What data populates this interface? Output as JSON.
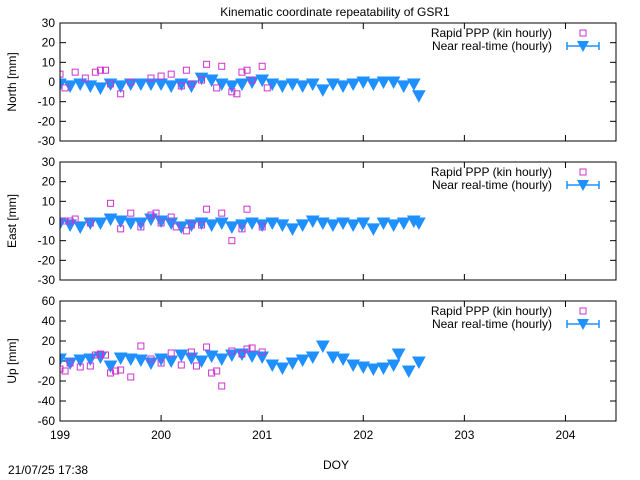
{
  "chart_data": {
    "title": "Kinematic coordinate repeatability of GSR1",
    "xlabel": "DOY",
    "timestamp": "21/07/25 17:38",
    "x_range": [
      199,
      204.5
    ],
    "x_ticks": [
      199,
      200,
      201,
      202,
      203,
      204
    ],
    "colors": {
      "rapid": "#cc33cc",
      "nrt": "#1e90ff"
    },
    "panels": [
      {
        "type": "scatter",
        "ylabel": "North [mm]",
        "ylim": [
          -30,
          30
        ],
        "y_ticks": [
          -30,
          -20,
          -10,
          0,
          10,
          20,
          30
        ],
        "series": [
          {
            "name": "Rapid PPP (kin hourly)",
            "points": [
              [
                199.0,
                4
              ],
              [
                199.05,
                -3
              ],
              [
                199.15,
                5
              ],
              [
                199.25,
                2
              ],
              [
                199.35,
                5
              ],
              [
                199.4,
                6
              ],
              [
                199.45,
                6
              ],
              [
                199.5,
                -1
              ],
              [
                199.6,
                -6
              ],
              [
                199.7,
                0
              ],
              [
                199.9,
                2
              ],
              [
                200.0,
                3
              ],
              [
                200.1,
                4
              ],
              [
                200.2,
                -2
              ],
              [
                200.25,
                6
              ],
              [
                200.3,
                -1
              ],
              [
                200.4,
                1
              ],
              [
                200.45,
                9
              ],
              [
                200.55,
                -3
              ],
              [
                200.6,
                8
              ],
              [
                200.7,
                -5
              ],
              [
                200.75,
                -6
              ],
              [
                200.8,
                5
              ],
              [
                200.85,
                6
              ],
              [
                200.9,
                1
              ],
              [
                201.0,
                8
              ],
              [
                201.05,
                -3
              ]
            ]
          },
          {
            "name": "Near real-time (hourly)",
            "points": [
              [
                199.0,
                -1
              ],
              [
                199.1,
                -2
              ],
              [
                199.2,
                -1
              ],
              [
                199.3,
                -2
              ],
              [
                199.4,
                -3
              ],
              [
                199.5,
                -1
              ],
              [
                199.6,
                -2
              ],
              [
                199.7,
                -1
              ],
              [
                199.8,
                -1
              ],
              [
                199.9,
                -1
              ],
              [
                200.0,
                -1
              ],
              [
                200.1,
                -2
              ],
              [
                200.2,
                -1
              ],
              [
                200.3,
                -2
              ],
              [
                200.4,
                2
              ],
              [
                200.5,
                1
              ],
              [
                200.6,
                -1
              ],
              [
                200.7,
                -2
              ],
              [
                200.8,
                -1
              ],
              [
                200.9,
                0
              ],
              [
                201.0,
                1
              ],
              [
                201.1,
                -1
              ],
              [
                201.2,
                -2
              ],
              [
                201.3,
                -1
              ],
              [
                201.4,
                -2
              ],
              [
                201.5,
                -1
              ],
              [
                201.6,
                -4
              ],
              [
                201.7,
                -1
              ],
              [
                201.8,
                -2
              ],
              [
                201.9,
                -1
              ],
              [
                202.0,
                0
              ],
              [
                202.1,
                -1
              ],
              [
                202.2,
                0
              ],
              [
                202.3,
                0
              ],
              [
                202.4,
                -2
              ],
              [
                202.5,
                -1
              ],
              [
                202.55,
                -7
              ]
            ]
          }
        ]
      },
      {
        "type": "scatter",
        "ylabel": "East [mm]",
        "ylim": [
          -30,
          30
        ],
        "y_ticks": [
          -30,
          -20,
          -10,
          0,
          10,
          20,
          30
        ],
        "series": [
          {
            "name": "Rapid PPP (kin hourly)",
            "points": [
              [
                199.05,
                0
              ],
              [
                199.1,
                0
              ],
              [
                199.15,
                1
              ],
              [
                199.3,
                -1
              ],
              [
                199.5,
                9
              ],
              [
                199.6,
                -4
              ],
              [
                199.7,
                4
              ],
              [
                199.8,
                -3
              ],
              [
                199.9,
                3
              ],
              [
                199.95,
                4
              ],
              [
                200.0,
                -1
              ],
              [
                200.1,
                2
              ],
              [
                200.15,
                -3
              ],
              [
                200.25,
                -5
              ],
              [
                200.3,
                -2
              ],
              [
                200.4,
                -2
              ],
              [
                200.45,
                6
              ],
              [
                200.6,
                4
              ],
              [
                200.7,
                -10
              ],
              [
                200.8,
                -4
              ],
              [
                200.85,
                6
              ],
              [
                201.0,
                -3
              ]
            ]
          },
          {
            "name": "Near real-time (hourly)",
            "points": [
              [
                199.0,
                -1
              ],
              [
                199.1,
                -2
              ],
              [
                199.2,
                -3
              ],
              [
                199.3,
                -1
              ],
              [
                199.4,
                -1
              ],
              [
                199.5,
                1
              ],
              [
                199.6,
                0
              ],
              [
                199.7,
                -1
              ],
              [
                199.8,
                -1
              ],
              [
                199.9,
                1
              ],
              [
                200.0,
                0
              ],
              [
                200.1,
                -1
              ],
              [
                200.2,
                -3
              ],
              [
                200.3,
                -2
              ],
              [
                200.4,
                -1
              ],
              [
                200.5,
                -2
              ],
              [
                200.6,
                -1
              ],
              [
                200.7,
                -3
              ],
              [
                200.8,
                -2
              ],
              [
                200.9,
                -1
              ],
              [
                201.0,
                -2
              ],
              [
                201.1,
                -1
              ],
              [
                201.2,
                -2
              ],
              [
                201.3,
                -4
              ],
              [
                201.4,
                -2
              ],
              [
                201.5,
                0
              ],
              [
                201.6,
                -1
              ],
              [
                201.7,
                -2
              ],
              [
                201.8,
                -1
              ],
              [
                201.9,
                -2
              ],
              [
                202.0,
                -1
              ],
              [
                202.1,
                -4
              ],
              [
                202.2,
                -1
              ],
              [
                202.3,
                -2
              ],
              [
                202.4,
                -1
              ],
              [
                202.5,
                0
              ],
              [
                202.55,
                -1
              ]
            ]
          }
        ]
      },
      {
        "type": "scatter",
        "ylabel": "Up [mm]",
        "ylim": [
          -60,
          60
        ],
        "y_ticks": [
          -60,
          -40,
          -20,
          0,
          20,
          40,
          60
        ],
        "series": [
          {
            "name": "Rapid PPP (kin hourly)",
            "points": [
              [
                199.0,
                -8
              ],
              [
                199.05,
                -10
              ],
              [
                199.1,
                -2
              ],
              [
                199.2,
                -6
              ],
              [
                199.3,
                -5
              ],
              [
                199.35,
                6
              ],
              [
                199.4,
                7
              ],
              [
                199.45,
                6
              ],
              [
                199.5,
                -12
              ],
              [
                199.55,
                -10
              ],
              [
                199.6,
                -9
              ],
              [
                199.7,
                -16
              ],
              [
                199.8,
                15
              ],
              [
                199.9,
                2
              ],
              [
                200.0,
                -2
              ],
              [
                200.1,
                8
              ],
              [
                200.2,
                -4
              ],
              [
                200.3,
                9
              ],
              [
                200.35,
                -5
              ],
              [
                200.45,
                14
              ],
              [
                200.5,
                -12
              ],
              [
                200.55,
                -10
              ],
              [
                200.6,
                -25
              ],
              [
                200.7,
                10
              ],
              [
                200.8,
                7
              ],
              [
                200.85,
                12
              ],
              [
                200.9,
                13
              ],
              [
                201.0,
                9
              ]
            ]
          },
          {
            "name": "Near real-time (hourly)",
            "points": [
              [
                199.0,
                2
              ],
              [
                199.1,
                -2
              ],
              [
                199.2,
                1
              ],
              [
                199.3,
                2
              ],
              [
                199.4,
                4
              ],
              [
                199.5,
                -5
              ],
              [
                199.6,
                3
              ],
              [
                199.7,
                2
              ],
              [
                199.8,
                1
              ],
              [
                199.9,
                -2
              ],
              [
                200.0,
                2
              ],
              [
                200.1,
                0
              ],
              [
                200.2,
                6
              ],
              [
                200.3,
                3
              ],
              [
                200.4,
                0
              ],
              [
                200.5,
                5
              ],
              [
                200.6,
                2
              ],
              [
                200.7,
                6
              ],
              [
                200.8,
                7
              ],
              [
                200.9,
                5
              ],
              [
                201.0,
                4
              ],
              [
                201.1,
                -4
              ],
              [
                201.2,
                -7
              ],
              [
                201.3,
                -2
              ],
              [
                201.4,
                1
              ],
              [
                201.5,
                4
              ],
              [
                201.6,
                15
              ],
              [
                201.7,
                4
              ],
              [
                201.8,
                2
              ],
              [
                201.9,
                -4
              ],
              [
                202.0,
                -6
              ],
              [
                202.1,
                -8
              ],
              [
                202.2,
                -7
              ],
              [
                202.3,
                -4
              ],
              [
                202.35,
                7
              ],
              [
                202.45,
                -10
              ],
              [
                202.55,
                -1
              ]
            ]
          }
        ]
      }
    ]
  }
}
